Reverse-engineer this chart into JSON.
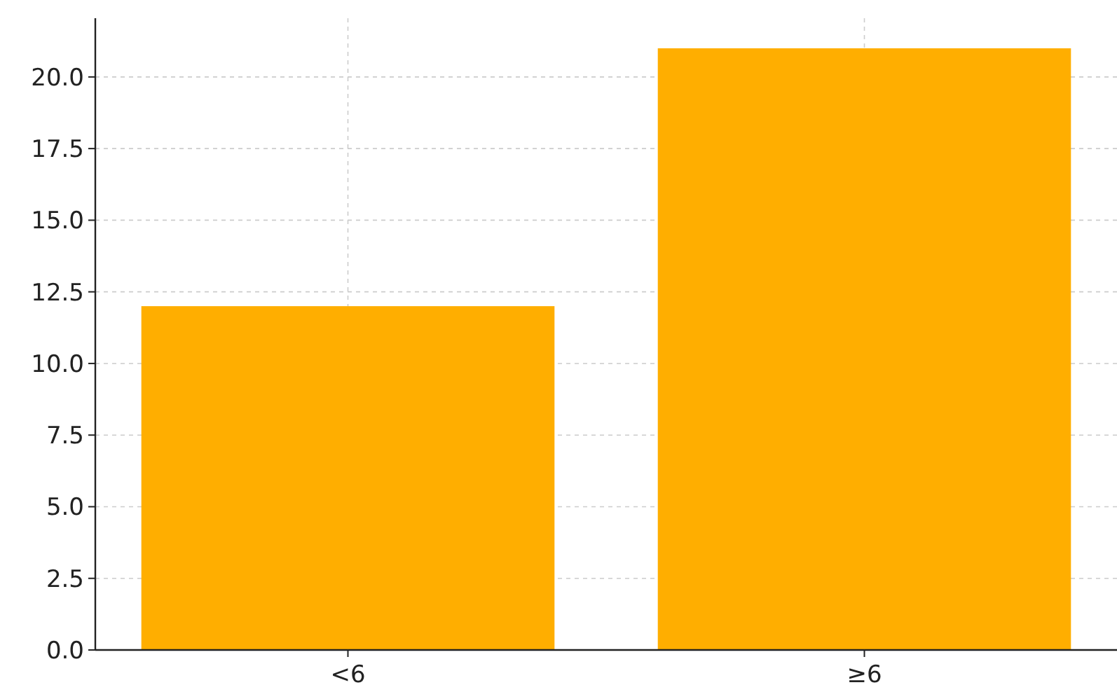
{
  "chart_data": {
    "type": "bar",
    "categories": [
      "<6",
      "≥6"
    ],
    "values": [
      12,
      21
    ],
    "color": "#ffae00",
    "ylim": [
      0,
      22.05
    ],
    "yticks": [
      {
        "value": 0,
        "label": "0.0"
      },
      2.5,
      {
        "value": 5,
        "label": "5.0"
      },
      7.5,
      {
        "value": 10,
        "label": "10.0"
      },
      12.5,
      {
        "value": 15,
        "label": "15.0"
      },
      17.5,
      {
        "value": 20,
        "label": "20.0"
      }
    ],
    "grid": true
  }
}
